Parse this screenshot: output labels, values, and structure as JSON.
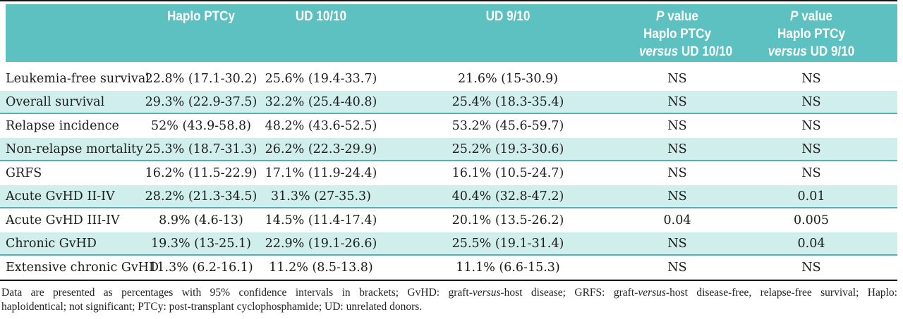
{
  "colors": {
    "header_bg": "#5ec1c1",
    "stripe_bg": "#d0eeec",
    "stripe_border": "#56b0b2",
    "rule": "#161616",
    "header_text": "#ffffff",
    "body_text": "#1c1c1c"
  },
  "header": {
    "cells": [
      {
        "lines": []
      },
      {
        "lines": [
          [
            {
              "t": "Haplo PTCy"
            }
          ]
        ]
      },
      {
        "lines": [
          [
            {
              "t": "UD 10/10"
            }
          ]
        ]
      },
      {
        "lines": [
          [
            {
              "t": "UD 9/10"
            }
          ]
        ]
      },
      {
        "lines": [
          [
            {
              "t": "P",
              "i": true
            },
            {
              "t": " value"
            }
          ],
          [
            {
              "t": "Haplo PTCy"
            }
          ],
          [
            {
              "t": "versus",
              "i": true
            },
            {
              "t": " UD 10/10"
            }
          ]
        ]
      },
      {
        "lines": [
          [
            {
              "t": "P",
              "i": true
            },
            {
              "t": " value"
            }
          ],
          [
            {
              "t": "Haplo PTCy"
            }
          ],
          [
            {
              "t": "versus",
              "i": true
            },
            {
              "t": " UD 9/10"
            }
          ]
        ]
      }
    ]
  },
  "table": {
    "rows": [
      {
        "label": "Leukemia-free survival",
        "haplo": "22.8% (17.1-30.2)",
        "ud10": "25.6% (19.4-33.7)",
        "ud9": "21.6% (15-30.9)",
        "p10": "NS",
        "p9": "NS"
      },
      {
        "label": "Overall survival",
        "haplo": "29.3% (22.9-37.5)",
        "ud10": "32.2% (25.4-40.8)",
        "ud9": "25.4% (18.3-35.4)",
        "p10": "NS",
        "p9": "NS"
      },
      {
        "label": "Relapse incidence",
        "haplo": "52% (43.9-58.8)",
        "ud10": "48.2% (43.6-52.5)",
        "ud9": "53.2% (45.6-59.7)",
        "p10": "NS",
        "p9": "NS"
      },
      {
        "label": "Non-relapse mortality",
        "haplo": "25.3% (18.7-31.3)",
        "ud10": "26.2% (22.3-29.9)",
        "ud9": "25.2% (19.3-30.6)",
        "p10": "NS",
        "p9": "NS"
      },
      {
        "label": "GRFS",
        "haplo": "16.2% (11.5-22.9)",
        "ud10": "17.1% (11.9-24.4)",
        "ud9": "16.1% (10.5-24.7)",
        "p10": "NS",
        "p9": "NS"
      },
      {
        "label": "Acute GvHD II-IV",
        "haplo": "28.2% (21.3-34.5)",
        "ud10": "31.3% (27-35.3)",
        "ud9": "40.4% (32.8-47.2)",
        "p10": "NS",
        "p9": "0.01"
      },
      {
        "label": "Acute GvHD III-IV",
        "haplo": "8.9% (4.6-13)",
        "ud10": "14.5% (11.4-17.4)",
        "ud9": "20.1% (13.5-26.2)",
        "p10": "0.04",
        "p9": "0.005"
      },
      {
        "label": "Chronic GvHD",
        "haplo": "19.3% (13-25.1)",
        "ud10": "22.9% (19.1-26.6)",
        "ud9": "25.5% (19.1-31.4)",
        "p10": "NS",
        "p9": "0.04"
      },
      {
        "label": "Extensive chronic GvHD",
        "haplo": "11.3% (6.2-16.1)",
        "ud10": "11.2% (8.5-13.8)",
        "ud9": "11.1% (6.6-15.3)",
        "p10": "NS",
        "p9": "NS"
      }
    ]
  },
  "footnote": {
    "lines": [
      [
        {
          "t": "Data are presented as percentages with 95% confidence intervals in brackets; GvHD: graft-"
        },
        {
          "t": "versus",
          "i": true
        },
        {
          "t": "-host disease; GRFS: graft-"
        },
        {
          "t": "versus",
          "i": true
        },
        {
          "t": "-host disease-free, relapse-free survival; Haplo:"
        }
      ],
      [
        {
          "t": "haploidentical; not significant; PTCy: post-transplant cyclophosphamide; UD: unrelated donors."
        }
      ]
    ]
  }
}
